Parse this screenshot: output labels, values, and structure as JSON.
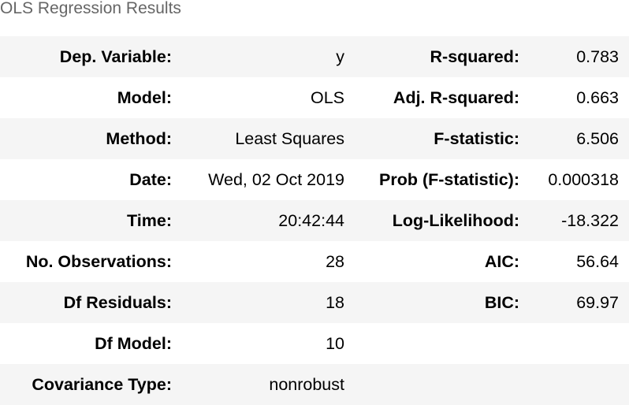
{
  "caption": "OLS Regression Results",
  "rows": [
    {
      "left_label": "Dep. Variable:",
      "left_value": "y",
      "right_label": "R-squared:",
      "right_value": "0.783"
    },
    {
      "left_label": "Model:",
      "left_value": "OLS",
      "right_label": "Adj. R-squared:",
      "right_value": "0.663"
    },
    {
      "left_label": "Method:",
      "left_value": "Least Squares",
      "right_label": "F-statistic:",
      "right_value": "6.506"
    },
    {
      "left_label": "Date:",
      "left_value": "Wed, 02 Oct 2019",
      "right_label": "Prob (F-statistic):",
      "right_value": "0.000318"
    },
    {
      "left_label": "Time:",
      "left_value": "20:42:44",
      "right_label": "Log-Likelihood:",
      "right_value": "-18.322"
    },
    {
      "left_label": "No. Observations:",
      "left_value": "28",
      "right_label": "AIC:",
      "right_value": "56.64"
    },
    {
      "left_label": "Df Residuals:",
      "left_value": "18",
      "right_label": "BIC:",
      "right_value": "69.97"
    },
    {
      "left_label": "Df Model:",
      "left_value": "10",
      "right_label": "",
      "right_value": ""
    },
    {
      "left_label": "Covariance Type:",
      "left_value": "nonrobust",
      "right_label": "",
      "right_value": ""
    }
  ]
}
